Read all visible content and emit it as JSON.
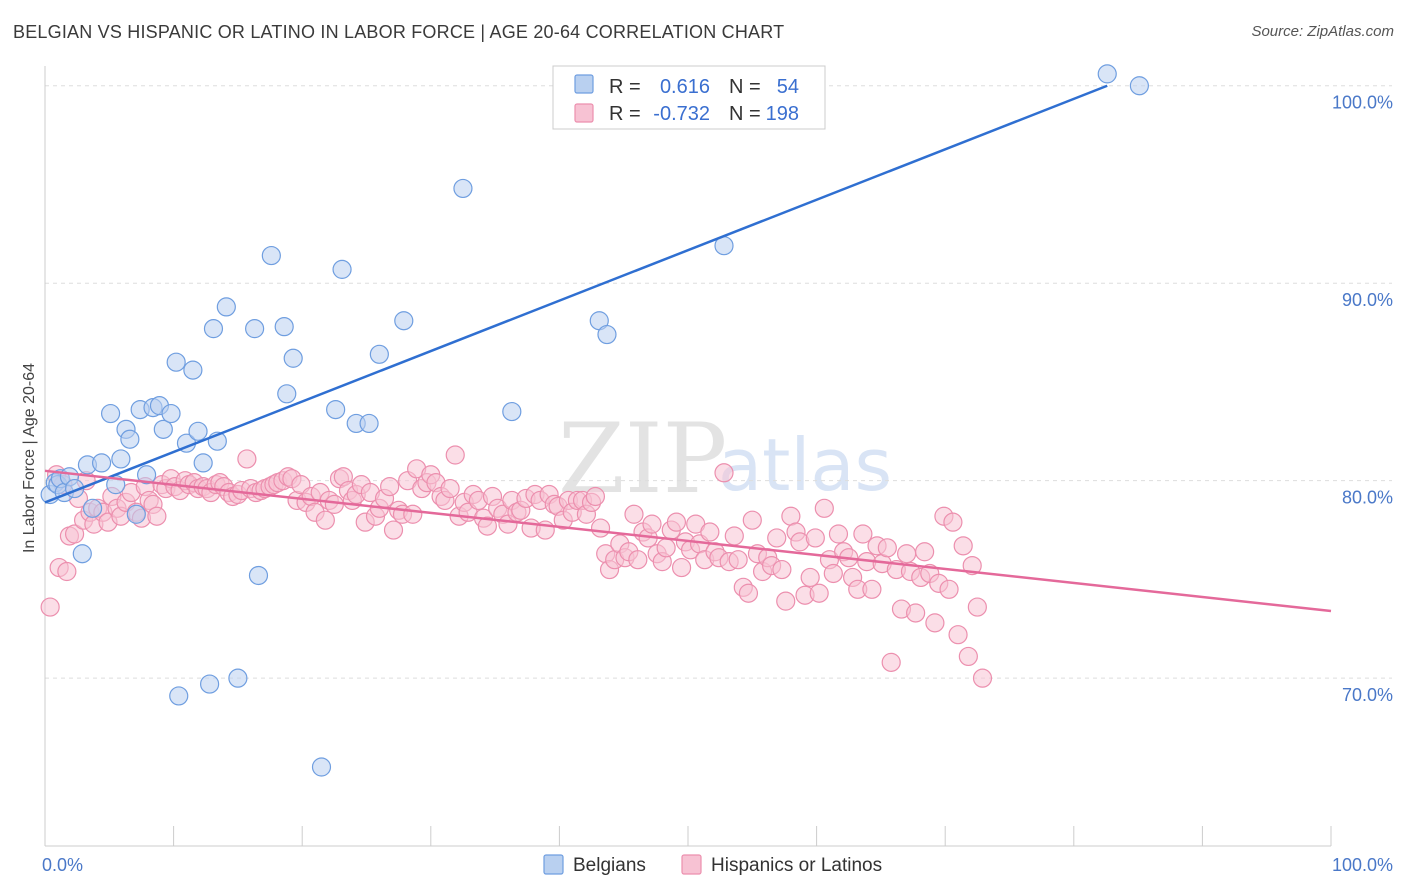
{
  "header": {
    "title": "BELGIAN VS HISPANIC OR LATINO IN LABOR FORCE | AGE 20-64 CORRELATION CHART",
    "source": "Source: ZipAtlas.com"
  },
  "watermark": {
    "zip": "ZIP",
    "atlas": "atlas"
  },
  "legend": {
    "r_label": "R =",
    "n_label": "N =",
    "rows": [
      {
        "r": "0.616",
        "n": "54"
      },
      {
        "r": "-0.732",
        "n": "198"
      }
    ]
  },
  "colors": {
    "belgian_fill": "#b9d0f0",
    "belgian_stroke": "#6f9ee0",
    "belgian_line": "#2f6fd1",
    "hispanic_fill": "#f7c2d3",
    "hispanic_stroke": "#ec8fae",
    "hispanic_line": "#e4699a",
    "grid": "#dddddd",
    "tick_text": "#4a78c8"
  },
  "chart_data": {
    "type": "scatter",
    "xlabel": "",
    "ylabel": "In Labor Force | Age 20-64",
    "xlim": [
      0,
      100
    ],
    "ylim": [
      61.5,
      101
    ],
    "x_tick_labels": [
      "0.0%",
      "100.0%"
    ],
    "y_ticks": [
      {
        "value": 100,
        "label": "100.0%"
      },
      {
        "value": 90,
        "label": "90.0%"
      },
      {
        "value": 80,
        "label": "80.0%"
      },
      {
        "value": 70,
        "label": "70.0%"
      }
    ],
    "grid": true,
    "legend_position": "top-center",
    "series": [
      {
        "name": "Belgians",
        "trend": {
          "x": [
            0,
            82.6
          ],
          "y": [
            78.9,
            100
          ]
        },
        "points": [
          [
            0.4,
            79.3
          ],
          [
            0.8,
            79.9
          ],
          [
            1.0,
            79.8
          ],
          [
            1.2,
            80.1
          ],
          [
            1.5,
            79.4
          ],
          [
            1.9,
            80.2
          ],
          [
            2.3,
            79.6
          ],
          [
            2.9,
            76.3
          ],
          [
            3.3,
            80.8
          ],
          [
            3.7,
            78.6
          ],
          [
            4.4,
            80.9
          ],
          [
            5.1,
            83.4
          ],
          [
            5.5,
            79.8
          ],
          [
            5.9,
            81.1
          ],
          [
            6.3,
            82.6
          ],
          [
            6.6,
            82.1
          ],
          [
            7.1,
            78.3
          ],
          [
            7.4,
            83.6
          ],
          [
            7.9,
            80.3
          ],
          [
            8.4,
            83.7
          ],
          [
            8.9,
            83.8
          ],
          [
            9.2,
            82.6
          ],
          [
            9.8,
            83.4
          ],
          [
            10.2,
            86.0
          ],
          [
            10.4,
            69.1
          ],
          [
            11.0,
            81.9
          ],
          [
            11.5,
            85.6
          ],
          [
            11.9,
            82.5
          ],
          [
            12.3,
            80.9
          ],
          [
            12.8,
            69.7
          ],
          [
            13.1,
            87.7
          ],
          [
            13.4,
            82.0
          ],
          [
            14.1,
            88.8
          ],
          [
            15.0,
            70.0
          ],
          [
            16.3,
            87.7
          ],
          [
            16.6,
            75.2
          ],
          [
            17.6,
            91.4
          ],
          [
            18.6,
            87.8
          ],
          [
            18.8,
            84.4
          ],
          [
            19.3,
            86.2
          ],
          [
            21.5,
            65.5
          ],
          [
            22.6,
            83.6
          ],
          [
            23.1,
            90.7
          ],
          [
            24.2,
            82.9
          ],
          [
            25.2,
            82.9
          ],
          [
            26.0,
            86.4
          ],
          [
            27.9,
            88.1
          ],
          [
            32.5,
            94.8
          ],
          [
            36.3,
            83.5
          ],
          [
            43.1,
            88.1
          ],
          [
            43.7,
            87.4
          ],
          [
            52.8,
            91.9
          ],
          [
            82.6,
            100.6
          ],
          [
            85.1,
            100.0
          ]
        ]
      },
      {
        "name": "Hispanics or Latinos",
        "trend": {
          "x": [
            0,
            100
          ],
          "y": [
            80.5,
            73.4
          ]
        },
        "points": [
          [
            0.4,
            73.6
          ],
          [
            0.9,
            80.3
          ],
          [
            1.1,
            75.6
          ],
          [
            1.4,
            79.8
          ],
          [
            1.7,
            75.4
          ],
          [
            1.9,
            77.2
          ],
          [
            2.3,
            77.3
          ],
          [
            2.6,
            79.1
          ],
          [
            3.0,
            78.0
          ],
          [
            3.2,
            80.0
          ],
          [
            3.5,
            78.4
          ],
          [
            3.8,
            77.8
          ],
          [
            4.1,
            78.6
          ],
          [
            4.5,
            78.4
          ],
          [
            4.9,
            77.9
          ],
          [
            5.2,
            79.2
          ],
          [
            5.6,
            78.6
          ],
          [
            5.9,
            78.2
          ],
          [
            6.3,
            78.9
          ],
          [
            6.7,
            79.4
          ],
          [
            7.1,
            78.4
          ],
          [
            7.5,
            78.1
          ],
          [
            7.8,
            79.7
          ],
          [
            8.1,
            79.0
          ],
          [
            8.4,
            78.8
          ],
          [
            8.7,
            78.2
          ],
          [
            9.1,
            79.8
          ],
          [
            9.4,
            79.6
          ],
          [
            9.8,
            80.1
          ],
          [
            10.1,
            79.7
          ],
          [
            10.5,
            79.5
          ],
          [
            10.9,
            80.0
          ],
          [
            11.2,
            79.8
          ],
          [
            11.6,
            79.9
          ],
          [
            11.9,
            79.6
          ],
          [
            12.3,
            79.7
          ],
          [
            12.6,
            79.6
          ],
          [
            12.9,
            79.4
          ],
          [
            13.3,
            79.8
          ],
          [
            13.6,
            79.9
          ],
          [
            13.9,
            79.7
          ],
          [
            14.3,
            79.4
          ],
          [
            14.6,
            79.2
          ],
          [
            15.0,
            79.3
          ],
          [
            15.3,
            79.5
          ],
          [
            15.7,
            81.1
          ],
          [
            16.0,
            79.6
          ],
          [
            16.4,
            79.4
          ],
          [
            16.8,
            79.5
          ],
          [
            17.1,
            79.6
          ],
          [
            17.5,
            79.7
          ],
          [
            17.8,
            79.8
          ],
          [
            18.1,
            79.9
          ],
          [
            18.5,
            80.0
          ],
          [
            18.9,
            80.2
          ],
          [
            19.2,
            80.1
          ],
          [
            19.6,
            79.0
          ],
          [
            19.9,
            79.8
          ],
          [
            20.3,
            78.9
          ],
          [
            20.7,
            79.2
          ],
          [
            21.0,
            78.4
          ],
          [
            21.4,
            79.4
          ],
          [
            21.8,
            78.0
          ],
          [
            22.1,
            79.0
          ],
          [
            22.5,
            78.8
          ],
          [
            22.9,
            80.1
          ],
          [
            23.2,
            80.2
          ],
          [
            23.6,
            79.5
          ],
          [
            23.9,
            79.0
          ],
          [
            24.2,
            79.3
          ],
          [
            24.6,
            79.8
          ],
          [
            24.9,
            77.9
          ],
          [
            25.3,
            79.4
          ],
          [
            25.7,
            78.2
          ],
          [
            26.0,
            78.6
          ],
          [
            26.4,
            79.1
          ],
          [
            26.8,
            79.7
          ],
          [
            27.1,
            77.5
          ],
          [
            27.5,
            78.5
          ],
          [
            27.8,
            78.3
          ],
          [
            28.2,
            80.0
          ],
          [
            28.6,
            78.3
          ],
          [
            28.9,
            80.6
          ],
          [
            29.3,
            79.6
          ],
          [
            29.7,
            79.9
          ],
          [
            30.0,
            80.3
          ],
          [
            30.4,
            79.9
          ],
          [
            30.8,
            79.2
          ],
          [
            31.1,
            79.0
          ],
          [
            31.5,
            79.6
          ],
          [
            31.9,
            81.3
          ],
          [
            32.2,
            78.2
          ],
          [
            32.6,
            78.9
          ],
          [
            32.9,
            78.4
          ],
          [
            33.3,
            79.3
          ],
          [
            33.7,
            79.0
          ],
          [
            34.1,
            78.1
          ],
          [
            34.4,
            77.7
          ],
          [
            34.8,
            79.2
          ],
          [
            35.2,
            78.6
          ],
          [
            35.6,
            78.3
          ],
          [
            36.0,
            77.8
          ],
          [
            36.3,
            79.0
          ],
          [
            36.7,
            78.4
          ],
          [
            37.0,
            78.5
          ],
          [
            37.4,
            79.1
          ],
          [
            37.8,
            77.6
          ],
          [
            38.1,
            79.3
          ],
          [
            38.5,
            79.0
          ],
          [
            38.9,
            77.5
          ],
          [
            39.2,
            79.3
          ],
          [
            39.6,
            78.8
          ],
          [
            39.9,
            78.7
          ],
          [
            40.3,
            78.0
          ],
          [
            40.7,
            79.0
          ],
          [
            41.0,
            78.4
          ],
          [
            41.4,
            79.0
          ],
          [
            41.8,
            79.0
          ],
          [
            42.1,
            78.3
          ],
          [
            42.5,
            78.9
          ],
          [
            42.8,
            79.2
          ],
          [
            43.2,
            77.6
          ],
          [
            43.6,
            76.3
          ],
          [
            43.9,
            75.5
          ],
          [
            44.3,
            76.0
          ],
          [
            44.7,
            76.8
          ],
          [
            45.1,
            76.1
          ],
          [
            45.4,
            76.4
          ],
          [
            45.8,
            78.3
          ],
          [
            46.1,
            76.0
          ],
          [
            46.5,
            77.4
          ],
          [
            46.9,
            77.1
          ],
          [
            47.2,
            77.8
          ],
          [
            47.6,
            76.3
          ],
          [
            48.0,
            75.9
          ],
          [
            48.3,
            76.6
          ],
          [
            48.7,
            77.5
          ],
          [
            49.1,
            77.9
          ],
          [
            49.5,
            75.6
          ],
          [
            49.8,
            76.9
          ],
          [
            50.2,
            76.5
          ],
          [
            50.6,
            77.8
          ],
          [
            50.9,
            76.8
          ],
          [
            51.3,
            76.0
          ],
          [
            51.7,
            77.4
          ],
          [
            52.1,
            76.4
          ],
          [
            52.4,
            76.1
          ],
          [
            52.8,
            80.4
          ],
          [
            53.2,
            75.9
          ],
          [
            53.6,
            77.2
          ],
          [
            53.9,
            76.0
          ],
          [
            54.3,
            74.6
          ],
          [
            54.7,
            74.3
          ],
          [
            55.0,
            78.0
          ],
          [
            55.4,
            76.3
          ],
          [
            55.8,
            75.4
          ],
          [
            56.2,
            76.1
          ],
          [
            56.5,
            75.7
          ],
          [
            56.9,
            77.1
          ],
          [
            57.3,
            75.5
          ],
          [
            57.6,
            73.9
          ],
          [
            58.0,
            78.2
          ],
          [
            58.4,
            77.4
          ],
          [
            58.7,
            76.9
          ],
          [
            59.1,
            74.2
          ],
          [
            59.5,
            75.1
          ],
          [
            59.9,
            77.1
          ],
          [
            60.2,
            74.3
          ],
          [
            60.6,
            78.6
          ],
          [
            61.0,
            76.0
          ],
          [
            61.3,
            75.3
          ],
          [
            61.7,
            77.3
          ],
          [
            62.1,
            76.4
          ],
          [
            62.5,
            76.1
          ],
          [
            62.8,
            75.1
          ],
          [
            63.2,
            74.5
          ],
          [
            63.6,
            77.3
          ],
          [
            63.9,
            75.9
          ],
          [
            64.3,
            74.5
          ],
          [
            64.7,
            76.7
          ],
          [
            65.1,
            75.8
          ],
          [
            65.5,
            76.6
          ],
          [
            65.8,
            70.8
          ],
          [
            66.2,
            75.5
          ],
          [
            66.6,
            73.5
          ],
          [
            67.0,
            76.3
          ],
          [
            67.3,
            75.4
          ],
          [
            67.7,
            73.3
          ],
          [
            68.1,
            75.1
          ],
          [
            68.4,
            76.4
          ],
          [
            68.8,
            75.3
          ],
          [
            69.2,
            72.8
          ],
          [
            69.5,
            74.8
          ],
          [
            69.9,
            78.2
          ],
          [
            70.3,
            74.5
          ],
          [
            70.6,
            77.9
          ],
          [
            71.0,
            72.2
          ],
          [
            71.4,
            76.7
          ],
          [
            71.8,
            71.1
          ],
          [
            72.1,
            75.7
          ],
          [
            72.5,
            73.6
          ],
          [
            72.9,
            70.0
          ]
        ]
      }
    ]
  },
  "bottom_legend": [
    {
      "label": "Belgians"
    },
    {
      "label": "Hispanics or Latinos"
    }
  ]
}
